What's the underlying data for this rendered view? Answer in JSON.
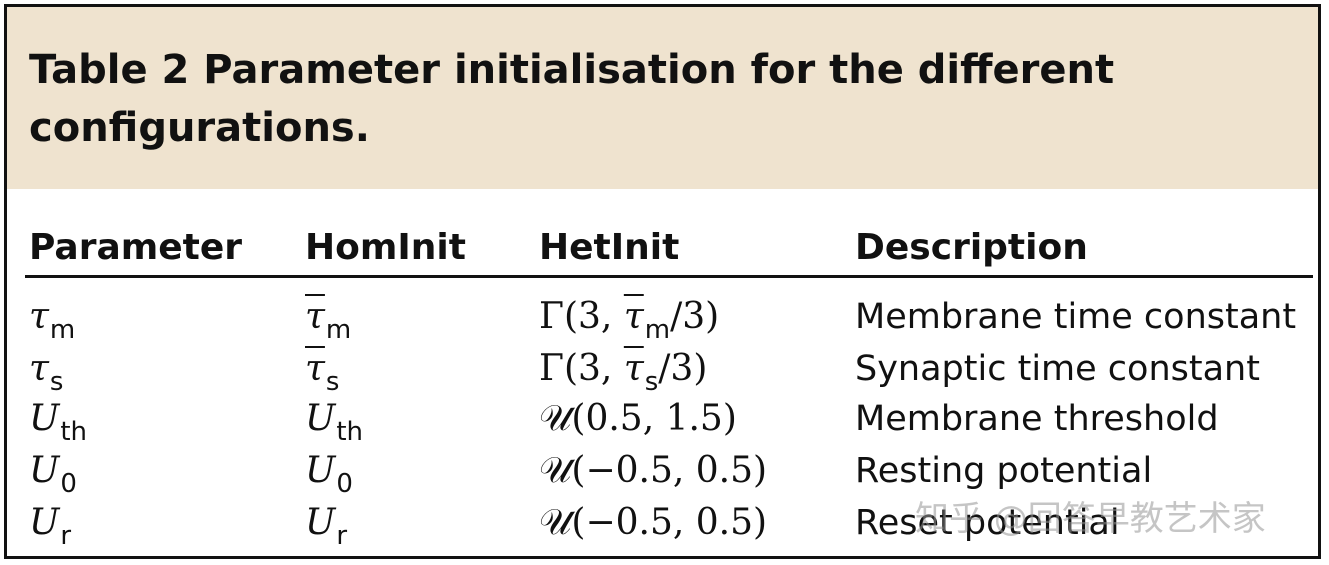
{
  "caption": {
    "title": "Table 2 Parameter initialisation for the different configurations."
  },
  "headers": [
    "Parameter",
    "HomInit",
    "HetInit",
    "Description"
  ],
  "rows": [
    {
      "param": {
        "sym": "τ",
        "sub": "m"
      },
      "hom": {
        "sym": "τ",
        "bar": true,
        "sub": "m"
      },
      "het": {
        "pre": "Γ(3, ",
        "sym": "τ",
        "bar": true,
        "sub": "m",
        "post": "/3)"
      },
      "desc": "Membrane time constant"
    },
    {
      "param": {
        "sym": "τ",
        "sub": "s"
      },
      "hom": {
        "sym": "τ",
        "bar": true,
        "sub": "s"
      },
      "het": {
        "pre": "Γ(3, ",
        "sym": "τ",
        "bar": true,
        "sub": "s",
        "post": "/3)"
      },
      "desc": "Synaptic time constant"
    },
    {
      "param": {
        "sym": "U",
        "sub": "th"
      },
      "hom": {
        "sym": "U",
        "bar": false,
        "sub": "th"
      },
      "het": {
        "text": "𝒰(0.5, 1.5)"
      },
      "desc": "Membrane threshold"
    },
    {
      "param": {
        "sym": "U",
        "sub": "0"
      },
      "hom": {
        "sym": "U",
        "bar": false,
        "sub": "0"
      },
      "het": {
        "text": "𝒰(−0.5, 0.5)"
      },
      "desc": "Resting potential"
    },
    {
      "param": {
        "sym": "U",
        "sub": "r"
      },
      "hom": {
        "sym": "U",
        "bar": false,
        "sub": "r"
      },
      "het": {
        "text": "𝒰(−0.5, 0.5)"
      },
      "desc": "Reset potential"
    }
  ],
  "watermark": "知乎 @回答早教艺术家"
}
